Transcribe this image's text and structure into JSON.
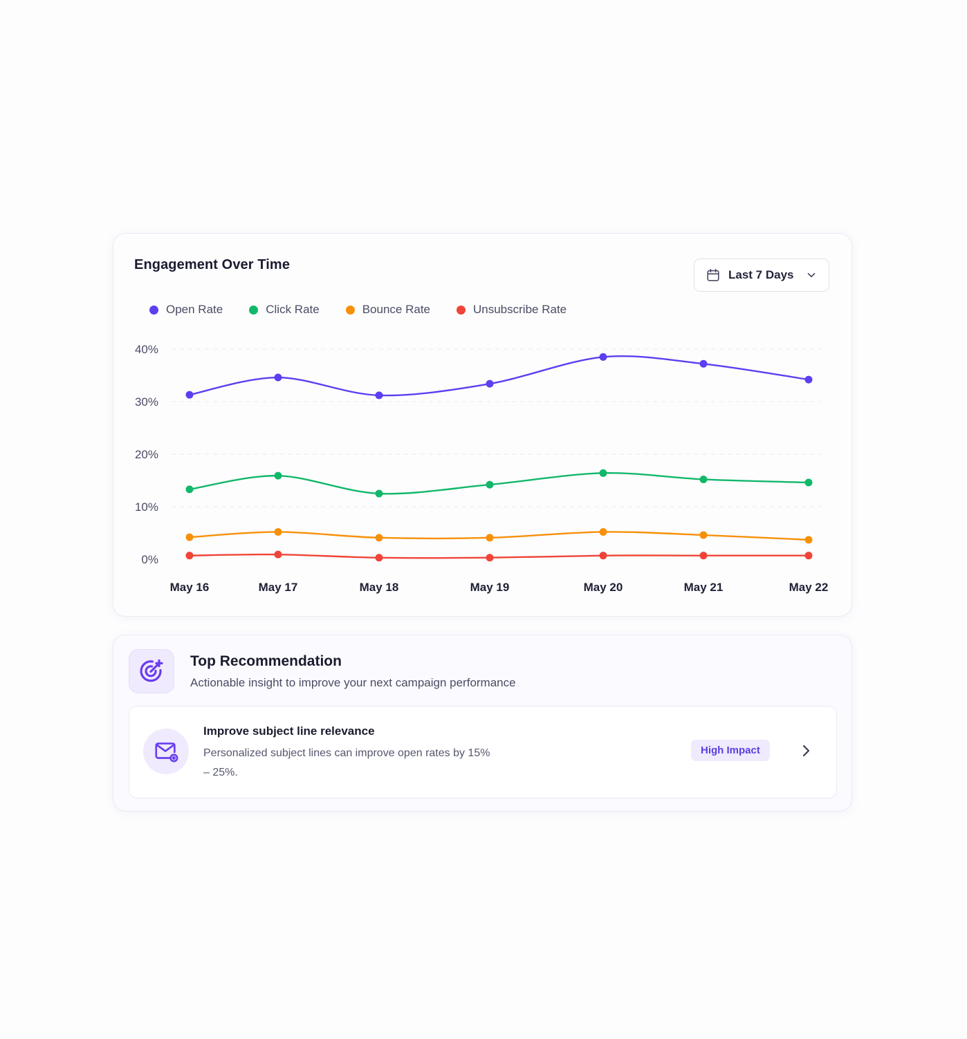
{
  "chart_card": {
    "title": "Engagement Over Time",
    "range_label": "Last 7 Days",
    "range_icon": "calendar-icon",
    "dropdown_icon": "chevron-down-icon"
  },
  "chart_data": {
    "type": "line",
    "x": [
      "May 16",
      "May 17",
      "May 18",
      "May 19",
      "May 20",
      "May 21",
      "May 22"
    ],
    "yticks": [
      "0%",
      "10%",
      "20%",
      "30%",
      "40%"
    ],
    "ylim": [
      0,
      40
    ],
    "grid": true,
    "legend_position": "top-left",
    "series": [
      {
        "name": "Open Rate",
        "color": "#5b3ff0",
        "values": [
          31.3,
          34.6,
          31.2,
          33.4,
          38.5,
          37.2,
          34.2
        ]
      },
      {
        "name": "Click Rate",
        "color": "#12b76a",
        "values": [
          13.3,
          15.9,
          12.5,
          14.2,
          16.4,
          15.2,
          14.6
        ]
      },
      {
        "name": "Bounce Rate",
        "color": "#f79009",
        "values": [
          4.2,
          5.2,
          4.1,
          4.1,
          5.2,
          4.6,
          3.7
        ]
      },
      {
        "name": "Unsubscribe Rate",
        "color": "#f04438",
        "values": [
          0.7,
          0.9,
          0.3,
          0.3,
          0.7,
          0.7,
          0.7
        ]
      }
    ]
  },
  "recommendation": {
    "title": "Top Recommendation",
    "subtitle": "Actionable insight to improve your next campaign performance",
    "icon": "target-icon",
    "insight": {
      "title": "Improve subject line relevance",
      "body": "Personalized subject lines can improve open rates by 15% – 25%.",
      "badge": "High Impact",
      "icon": "mail-icon",
      "action_icon": "chevron-right-icon"
    }
  }
}
